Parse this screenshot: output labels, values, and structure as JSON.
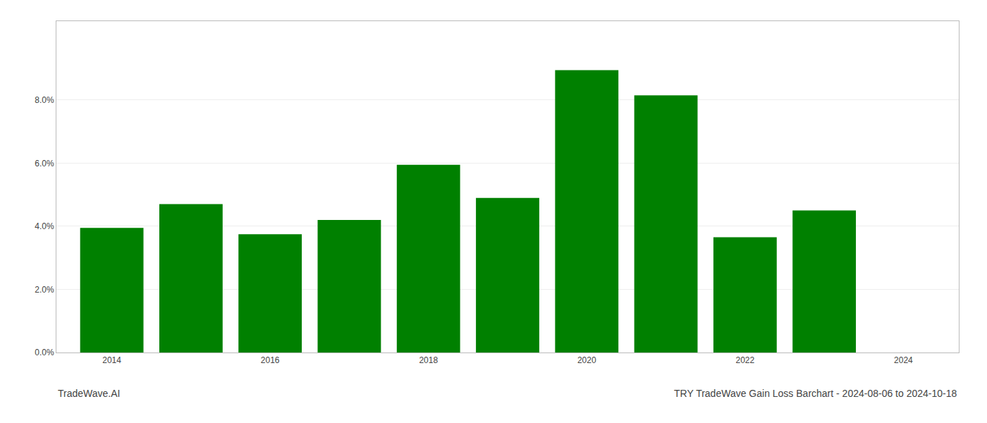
{
  "chart_data": {
    "type": "bar",
    "title": "TRY TradeWave Gain Loss Barchart - 2024-08-06 to 2024-10-18",
    "annotations": [
      "TradeWave.AI"
    ],
    "x": [
      2014,
      2015,
      2016,
      2017,
      2018,
      2019,
      2020,
      2021,
      2022,
      2023
    ],
    "values": [
      0.0395,
      0.047,
      0.0375,
      0.042,
      0.0595,
      0.049,
      0.0895,
      0.0815,
      0.0365,
      0.045
    ],
    "color": "#008000",
    "xlim": [
      2013.3,
      2024.7
    ],
    "xticks": [
      2014,
      2016,
      2018,
      2020,
      2022,
      2024
    ],
    "ylim": [
      0.0,
      0.105
    ],
    "yticks": [
      {
        "value": 0.0,
        "label": "0.0%"
      },
      {
        "value": 0.02,
        "label": "2.0%"
      },
      {
        "value": 0.04,
        "label": "4.0%"
      },
      {
        "value": 0.06,
        "label": "6.0%"
      },
      {
        "value": 0.08,
        "label": "8.0%"
      }
    ],
    "grid": true
  }
}
